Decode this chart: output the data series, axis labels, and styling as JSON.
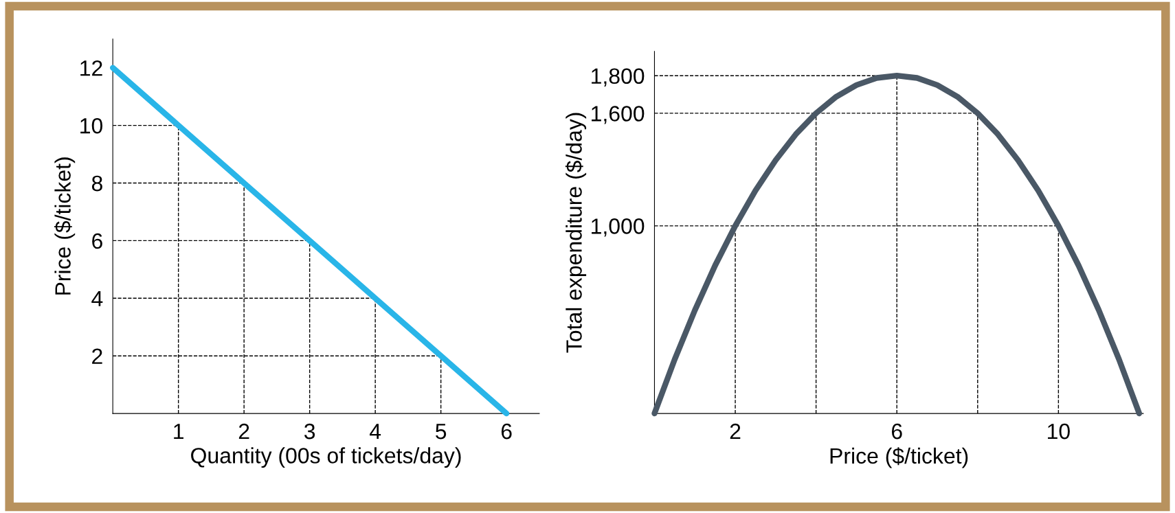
{
  "chart_data": [
    {
      "type": "line",
      "xlabel": "Quantity (00s of tickets/day)",
      "ylabel": "Price ($/ticket)",
      "x": [
        0,
        1,
        2,
        3,
        4,
        5,
        6
      ],
      "series": [
        {
          "color": "#29b5e8",
          "values": [
            12,
            10,
            8,
            6,
            4,
            2,
            0
          ]
        }
      ],
      "xlim": [
        0,
        6.5
      ],
      "ylim": [
        0,
        13
      ],
      "xticks": [
        1,
        2,
        3,
        4,
        5,
        6
      ],
      "yticks": [
        2,
        4,
        6,
        8,
        10,
        12
      ],
      "grid": false,
      "marker": "none",
      "line_style": "solid",
      "ref_lines": [
        {
          "axis": "y",
          "value": 10,
          "line_style": "dashed"
        },
        {
          "axis": "y",
          "value": 8,
          "line_style": "dashed"
        },
        {
          "axis": "y",
          "value": 6,
          "line_style": "dashed"
        },
        {
          "axis": "y",
          "value": 4,
          "line_style": "dashed"
        },
        {
          "axis": "y",
          "value": 2,
          "line_style": "dashed"
        },
        {
          "axis": "x",
          "value": 1,
          "line_style": "dashed"
        },
        {
          "axis": "x",
          "value": 2,
          "line_style": "dashed"
        },
        {
          "axis": "x",
          "value": 3,
          "line_style": "dashed"
        },
        {
          "axis": "x",
          "value": 4,
          "line_style": "dashed"
        },
        {
          "axis": "x",
          "value": 5,
          "line_style": "dashed"
        }
      ]
    },
    {
      "type": "line",
      "xlabel": "Price ($/ticket)",
      "ylabel": "Total expenditure ($/day)",
      "x": [
        0,
        0.5,
        1,
        1.5,
        2,
        2.5,
        3,
        3.5,
        4,
        4.5,
        5,
        5.5,
        6,
        6.5,
        7,
        7.5,
        8,
        8.5,
        9,
        9.5,
        10,
        10.5,
        11,
        11.5,
        12
      ],
      "series": [
        {
          "color": "#4a5866",
          "values": [
            0,
            288,
            550,
            788,
            1000,
            1188,
            1350,
            1488,
            1600,
            1688,
            1750,
            1788,
            1800,
            1788,
            1750,
            1688,
            1600,
            1488,
            1350,
            1188,
            1000,
            788,
            550,
            288,
            0
          ]
        }
      ],
      "xlim": [
        0,
        12.1
      ],
      "ylim": [
        0,
        1930
      ],
      "xticks": [
        2,
        6,
        10
      ],
      "yticks": [
        {
          "value": 1000,
          "label": "1,000"
        },
        {
          "value": 1600,
          "label": "1,600"
        },
        {
          "value": 1800,
          "label": "1,800"
        }
      ],
      "grid": false,
      "marker": "none",
      "line_style": "solid",
      "ref_lines": [
        {
          "axis": "y",
          "value": 1800,
          "line_style": "dashed"
        },
        {
          "axis": "y",
          "value": 1600,
          "line_style": "dashed"
        },
        {
          "axis": "y",
          "value": 1000,
          "line_style": "dashed"
        },
        {
          "axis": "x",
          "value": 2,
          "line_style": "dashed"
        },
        {
          "axis": "x",
          "value": 4,
          "line_style": "dashed"
        },
        {
          "axis": "x",
          "value": 6,
          "line_style": "dashed"
        },
        {
          "axis": "x",
          "value": 8,
          "line_style": "dashed"
        },
        {
          "axis": "x",
          "value": 10,
          "line_style": "dashed"
        }
      ]
    }
  ]
}
